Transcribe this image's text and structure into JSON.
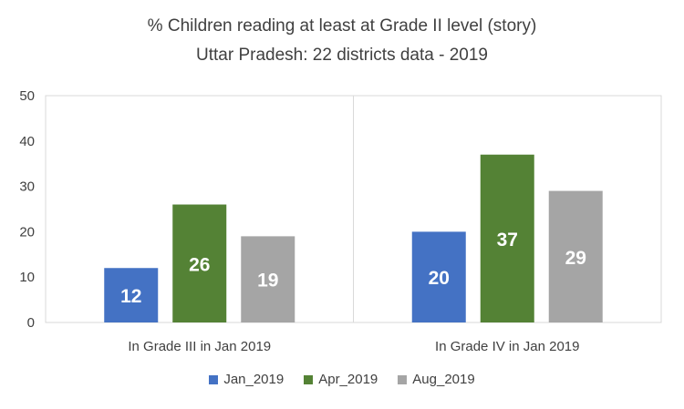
{
  "chart_data": {
    "type": "bar",
    "title": "% Children reading at least at Grade II level (story)",
    "subtitle": "Uttar Pradesh: 22 districts data - 2019",
    "categories": [
      "In Grade III in Jan 2019",
      "In Grade IV in Jan 2019"
    ],
    "series": [
      {
        "name": "Jan_2019",
        "values": [
          12,
          20
        ],
        "color": "#4472C4"
      },
      {
        "name": "Apr_2019",
        "values": [
          26,
          37
        ],
        "color": "#548235"
      },
      {
        "name": "Aug_2019",
        "values": [
          19,
          29
        ],
        "color": "#A5A5A5"
      }
    ],
    "ylim": [
      0,
      50
    ],
    "yticks": [
      "0",
      "10",
      "20",
      "30",
      "40",
      "50"
    ],
    "xlabel": "",
    "ylabel": "",
    "grid": false,
    "legend_position": "bottom"
  }
}
